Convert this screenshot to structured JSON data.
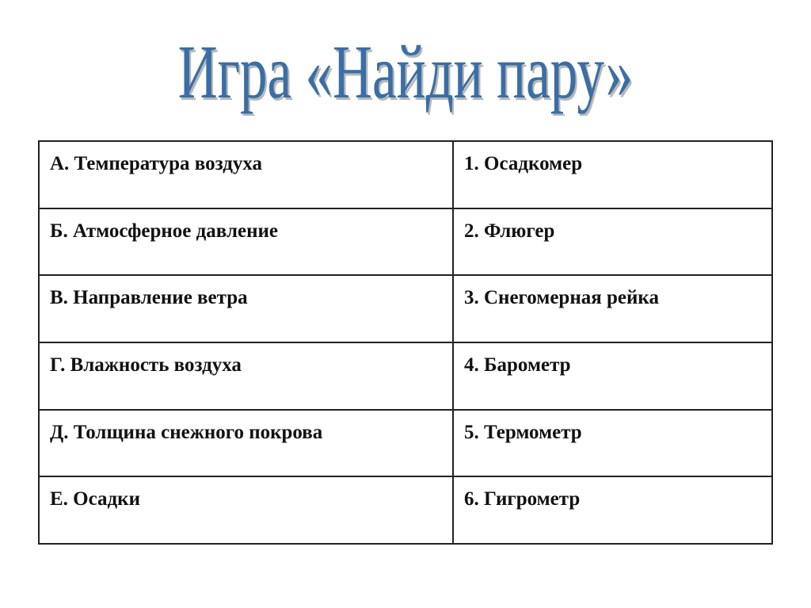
{
  "title": "Игра «Найди пару»",
  "colors": {
    "title": "#3a6ea5"
  },
  "rows": [
    {
      "left": "А. Температура воздуха",
      "right": "1. Осадкомер"
    },
    {
      "left": "Б. Атмосферное давление",
      "right": "2. Флюгер"
    },
    {
      "left": "В. Направление ветра",
      "right": "3. Снегомерная рейка"
    },
    {
      "left": "Г. Влажность воздуха",
      "right": "4. Барометр"
    },
    {
      "left": "Д. Толщина снежного покрова",
      "right": "5. Термометр"
    },
    {
      "left": "Е. Осадки",
      "right": "6. Гигрометр"
    }
  ]
}
